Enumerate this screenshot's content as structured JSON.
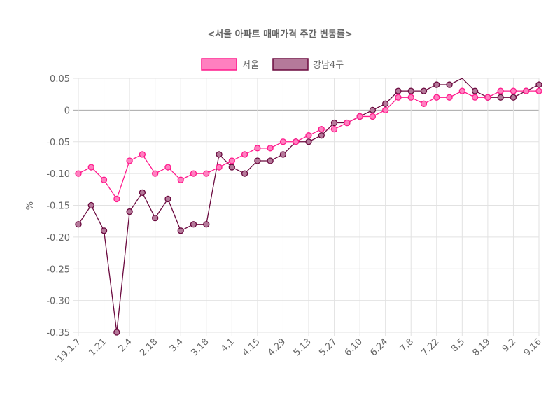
{
  "chart_data": {
    "type": "line",
    "title": "<서울 아파트 매매가격 주간 변동률>",
    "xlabel": "",
    "ylabel": "%",
    "ylim": [
      -0.35,
      0.05
    ],
    "yticks": [
      "0.05",
      "0",
      "-0.05",
      "-0.10",
      "-0.15",
      "-0.20",
      "-0.25",
      "-0.30",
      "-0.35"
    ],
    "ytick_values": [
      0.05,
      0,
      -0.05,
      -0.1,
      -0.15,
      -0.2,
      -0.25,
      -0.3,
      -0.35
    ],
    "x_tick_labels": [
      "'19.1.7",
      "1.21",
      "2.4",
      "2.18",
      "3.4",
      "3.18",
      "4.1",
      "4.15",
      "4.29",
      "5.13",
      "5.27",
      "6.10",
      "6.24",
      "7.8",
      "7.22",
      "8.5",
      "8.19",
      "9.2",
      "9.16"
    ],
    "legend_position": "top",
    "grid": true,
    "series": [
      {
        "name": "서울",
        "color": "#ff1a8c",
        "fill": "#ff7fbf",
        "values": [
          -0.1,
          -0.09,
          -0.11,
          -0.14,
          -0.08,
          -0.07,
          -0.1,
          -0.09,
          -0.11,
          -0.1,
          -0.1,
          -0.09,
          -0.08,
          -0.07,
          -0.06,
          -0.06,
          -0.05,
          -0.05,
          -0.04,
          -0.03,
          -0.03,
          -0.02,
          -0.01,
          -0.01,
          0.0,
          0.02,
          0.02,
          0.01,
          0.02,
          0.02,
          0.03,
          0.02,
          0.02,
          0.03,
          0.03,
          0.03,
          0.03
        ]
      },
      {
        "name": "강남4구",
        "color": "#6b0a3f",
        "fill": "#b5799a",
        "values": [
          -0.18,
          -0.15,
          -0.19,
          -0.35,
          -0.16,
          -0.13,
          -0.17,
          -0.14,
          -0.19,
          -0.18,
          -0.18,
          -0.07,
          -0.09,
          -0.1,
          -0.08,
          -0.08,
          -0.07,
          -0.05,
          -0.05,
          -0.04,
          -0.02,
          -0.02,
          -0.01,
          0.0,
          0.01,
          0.03,
          0.03,
          0.03,
          0.04,
          0.04,
          0.05,
          0.03,
          0.02,
          0.02,
          0.02,
          0.03,
          0.04
        ]
      }
    ]
  }
}
